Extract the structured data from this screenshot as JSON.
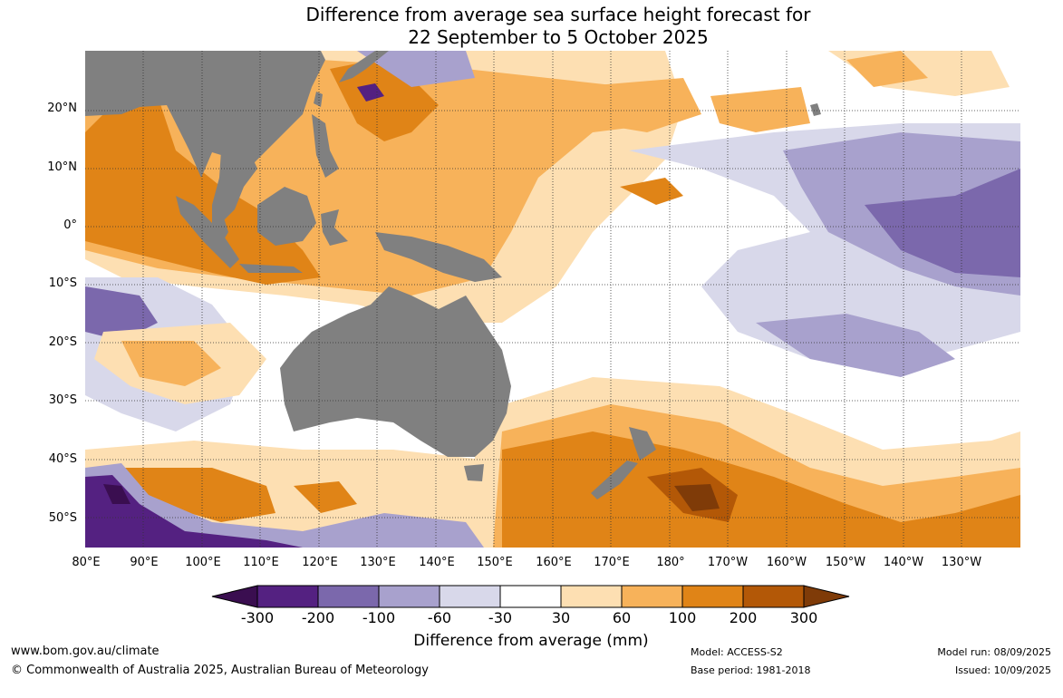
{
  "title": {
    "line1": "Difference from average sea surface height forecast for",
    "line2": "22 September to 5 October 2025"
  },
  "map": {
    "lat_labels": [
      "20°N",
      "10°N",
      "0°",
      "10°S",
      "20°S",
      "30°S",
      "40°S",
      "50°S"
    ],
    "lon_labels": [
      "80°E",
      "90°E",
      "100°E",
      "110°E",
      "120°E",
      "130°E",
      "140°E",
      "150°E",
      "160°E",
      "170°E",
      "180°",
      "170°W",
      "160°W",
      "150°W",
      "140°W",
      "130°W"
    ],
    "land_color": "#808080",
    "grid_style": "dotted"
  },
  "colorbar": {
    "title": "Difference from average (mm)",
    "labels": [
      "-300",
      "-200",
      "-100",
      "-60",
      "-30",
      "30",
      "60",
      "100",
      "200",
      "300"
    ],
    "colors": {
      "below_-300": "#3a0e50",
      "-300_to_-200": "#542181",
      "-200_to_-100": "#7b68ac",
      "-100_to_-60": "#a8a1cd",
      "-60_to_-30": "#d8d8ea",
      "-30_to_30": "#ffffff",
      "30_to_60": "#fddfb2",
      "60_to_100": "#f7b25a",
      "100_to_200": "#e08417",
      "200_to_300": "#b35807",
      "above_300": "#7f3b08"
    }
  },
  "footer": {
    "website": "www.bom.gov.au/climate",
    "copyright": "© Commonwealth of Australia 2025, Australian Bureau of Meteorology",
    "model": "Model: ACCESS-S2",
    "base_period": "Base period: 1981-2018",
    "model_run": "Model run: 08/09/2025",
    "issued": "Issued: 10/09/2025"
  }
}
